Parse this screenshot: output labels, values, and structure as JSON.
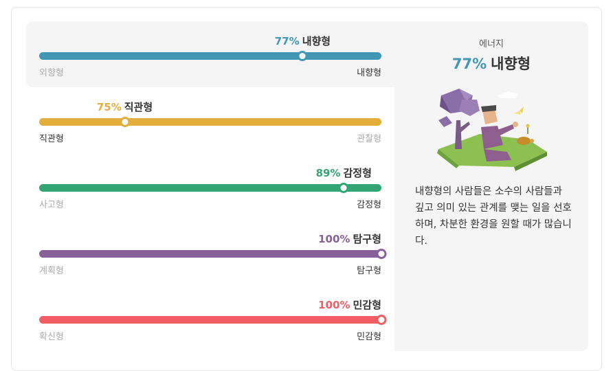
{
  "traits": [
    {
      "pct_text": "77%",
      "name": "내향형",
      "value": 77,
      "knob_position": 0.77,
      "color": "#4298b4",
      "left": "외향형",
      "right": "내향형",
      "highlight": "right",
      "active": true
    },
    {
      "pct_text": "75%",
      "name": "직관형",
      "value": 75,
      "knob_position": 0.25,
      "color": "#e4ae3a",
      "left": "직관형",
      "right": "관찰형",
      "highlight": "left",
      "active": false
    },
    {
      "pct_text": "89%",
      "name": "감정형",
      "value": 89,
      "knob_position": 0.89,
      "color": "#33a474",
      "left": "사고형",
      "right": "감정형",
      "highlight": "right",
      "active": false
    },
    {
      "pct_text": "100%",
      "name": "탐구형",
      "value": 100,
      "knob_position": 1.0,
      "color": "#88619a",
      "left": "계획형",
      "right": "탐구형",
      "highlight": "right",
      "active": false
    },
    {
      "pct_text": "100%",
      "name": "민감형",
      "value": 100,
      "knob_position": 1.0,
      "color": "#f25e62",
      "left": "확신형",
      "right": "민감형",
      "highlight": "right",
      "active": false
    }
  ],
  "panel": {
    "category": "에너지",
    "pct_text": "77%",
    "name": "내향형",
    "illustration_icon": "introvert-person-under-tree-illustration",
    "description": "내향형의 사람들은 소수의 사람들과 깊고 의미 있는 관계를 맺는 일을 선호하며, 차분한 환경을 원할 때가 많습니다."
  }
}
